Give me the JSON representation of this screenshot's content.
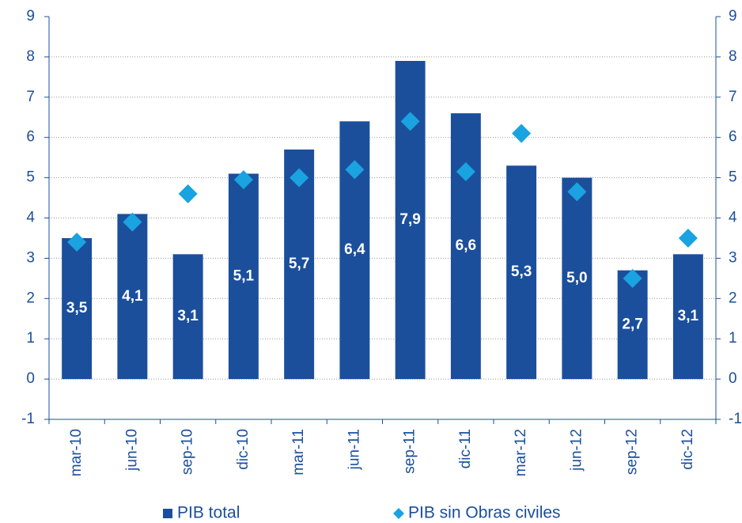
{
  "chart_data": {
    "type": "bar",
    "categories": [
      "mar-10",
      "jun-10",
      "sep-10",
      "dic-10",
      "mar-11",
      "jun-11",
      "sep-11",
      "dic-11",
      "mar-12",
      "jun-12",
      "sep-12",
      "dic-12"
    ],
    "series": [
      {
        "name": "PIB total",
        "type": "bar",
        "color": "#1b4f9c",
        "values": [
          3.5,
          4.1,
          3.1,
          5.1,
          5.7,
          6.4,
          7.9,
          6.6,
          5.3,
          5.0,
          2.7,
          3.1
        ],
        "value_labels": [
          "3,5",
          "4,1",
          "3,1",
          "5,1",
          "5,7",
          "6,4",
          "7,9",
          "6,6",
          "5,3",
          "5,0",
          "2,7",
          "3,1"
        ]
      },
      {
        "name": "PIB sin Obras civiles",
        "type": "scatter",
        "color": "#1aa3e0",
        "values": [
          3.4,
          3.9,
          4.6,
          4.95,
          5.0,
          5.2,
          6.4,
          5.15,
          6.1,
          4.65,
          2.5,
          3.5
        ]
      }
    ],
    "ylim": [
      -1,
      9
    ],
    "yticks": [
      -1,
      0,
      1,
      2,
      3,
      4,
      5,
      6,
      7,
      8,
      9
    ],
    "y2lim": [
      -1,
      9
    ],
    "y2ticks": [
      -1,
      0,
      1,
      2,
      3,
      4,
      5,
      6,
      7,
      8,
      9
    ],
    "grid": true
  }
}
